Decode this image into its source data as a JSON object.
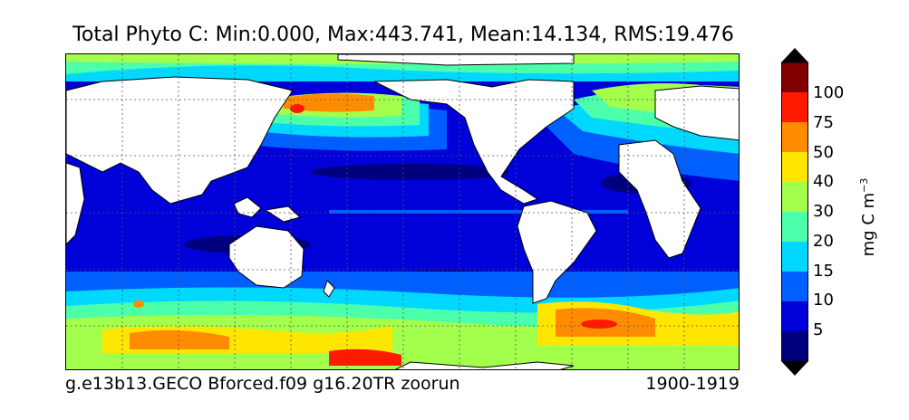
{
  "title": "Total Phyto C: Min:0.000, Max:443.741, Mean:14.134, RMS:19.476",
  "footer": {
    "run_name": "g.e13b13.GECO Bforced.f09 g16.20TR zoorun",
    "period": "1900-1919"
  },
  "colorbar": {
    "units_base": "mg C m",
    "units_exponent": "−3",
    "ticks": [
      {
        "label": "100"
      },
      {
        "label": "75"
      },
      {
        "label": "50"
      },
      {
        "label": "40"
      },
      {
        "label": "30"
      },
      {
        "label": "20"
      },
      {
        "label": "15"
      },
      {
        "label": "10"
      },
      {
        "label": "5"
      }
    ],
    "levels": [
      {
        "upper": "over",
        "color": "#000000"
      },
      {
        "upper": "100+",
        "color": "#800000"
      },
      {
        "upper": "100",
        "color": "#ff1a00"
      },
      {
        "upper": "75",
        "color": "#ff8c00"
      },
      {
        "upper": "50",
        "color": "#ffe600"
      },
      {
        "upper": "40",
        "color": "#a4ff4c"
      },
      {
        "upper": "30",
        "color": "#4cffaa"
      },
      {
        "upper": "20",
        "color": "#00d8ff"
      },
      {
        "upper": "15",
        "color": "#0060ff"
      },
      {
        "upper": "10",
        "color": "#0000d8"
      },
      {
        "upper": "5",
        "color": "#00007f"
      },
      {
        "upper": "under",
        "color": "#000000"
      }
    ]
  },
  "map": {
    "land_color": "#ffffff",
    "grid": "dotted"
  }
}
